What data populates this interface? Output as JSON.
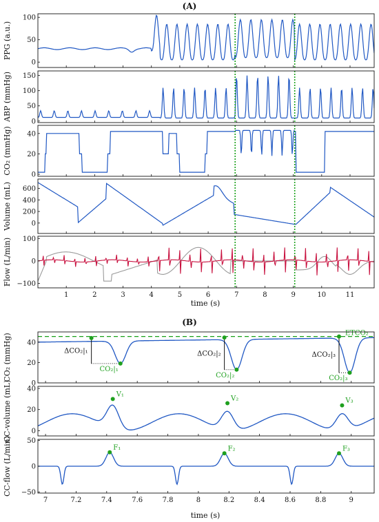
{
  "colors": {
    "signal": "#1f57c3",
    "flow_red": "#c8103e",
    "flow_gray": "#9a9a9a",
    "marker_green": "#1fa01f",
    "dashed_green": "#17a017",
    "axis": "#111111"
  },
  "chart_data": [
    {
      "type": "line",
      "panel": "A",
      "title": "(A)",
      "xlabel": "time (s)",
      "xlim": [
        0,
        11.85
      ],
      "xticks": [
        1,
        2,
        3,
        4,
        5,
        6,
        7,
        8,
        9,
        10,
        11
      ],
      "xtick_labels": [
        "1",
        "2",
        "3",
        "4",
        "5",
        "6",
        "7",
        "8",
        "9",
        "10",
        "11"
      ],
      "vlines": [
        6.95,
        9.05
      ],
      "subplots": [
        {
          "ylabel": "PPG (a.u.)",
          "ylim": [
            -12,
            108
          ],
          "yticks": [
            0,
            50,
            100
          ],
          "ytick_labels": [
            "0",
            "50",
            "100"
          ]
        },
        {
          "ylabel": "ABP (mmHg)",
          "ylim": [
            -5,
            165
          ],
          "yticks": [
            0,
            50,
            100,
            150
          ],
          "ytick_labels": [
            "0",
            "50",
            "100",
            "150"
          ]
        },
        {
          "ylabel": "CO₂ (mmHg)",
          "ylim": [
            -2,
            48
          ],
          "yticks": [
            0,
            20,
            40
          ],
          "ytick_labels": [
            "0",
            "20",
            "40"
          ]
        },
        {
          "ylabel": "Volume (mL)",
          "ylim": [
            -180,
            760
          ],
          "yticks": [
            0,
            200,
            400,
            600
          ],
          "ytick_labels": [
            "0",
            "200",
            "400",
            "600"
          ]
        },
        {
          "ylabel": "Flow (L/min)",
          "ylim": [
            -120,
            110
          ],
          "yticks": [
            -100,
            0,
            100
          ],
          "ytick_labels": [
            "−100",
            "0",
            "100"
          ]
        }
      ]
    },
    {
      "type": "line",
      "panel": "B",
      "title": "(B)",
      "xlabel": "time (s)",
      "xlim": [
        6.95,
        9.15
      ],
      "xticks": [
        7,
        7.2,
        7.4,
        7.6,
        7.8,
        8,
        8.2,
        8.4,
        8.6,
        8.8,
        9
      ],
      "xtick_labels": [
        "7",
        "7.2",
        "7.4",
        "7.6",
        "7.8",
        "8",
        "8.2",
        "8.4",
        "8.6",
        "8.8",
        "9"
      ],
      "subplots": [
        {
          "ylabel": "CO₂ (mmHg)",
          "ylim": [
            0,
            50
          ],
          "yticks": [
            0,
            20,
            40
          ],
          "ytick_labels": [
            "0",
            "20",
            "40"
          ],
          "etco2_level": 45.5,
          "etco2_label": "ETCO₂",
          "peaks": [
            {
              "x": 7.3,
              "y": 44
            },
            {
              "x": 8.17,
              "y": 44.5
            },
            {
              "x": 8.92,
              "y": 45.5
            }
          ],
          "troughs": [
            {
              "x": 7.49,
              "y": 19
            },
            {
              "x": 8.25,
              "y": 13
            },
            {
              "x": 8.99,
              "y": 10
            }
          ],
          "delta_labels": [
            "ΔCO₂|₁",
            "ΔCO₂|₂",
            "ΔCO₂|₃"
          ],
          "trough_labels": [
            "CO₂|₁",
            "CO₂|₂",
            "CO₂|₃"
          ]
        },
        {
          "ylabel": "CC-volume (mL)",
          "ylim": [
            -5,
            42
          ],
          "yticks": [
            0,
            20,
            40
          ],
          "ytick_labels": [
            "0",
            "20",
            "40"
          ],
          "markers": [
            {
              "x": 7.44,
              "y": 30,
              "label": "V₁"
            },
            {
              "x": 8.19,
              "y": 26,
              "label": "V₂"
            },
            {
              "x": 8.94,
              "y": 24,
              "label": "V₃"
            }
          ]
        },
        {
          "ylabel": "CC-flow (L/min)",
          "ylim": [
            -52,
            52
          ],
          "yticks": [
            -50,
            0,
            50
          ],
          "ytick_labels": [
            "−50",
            "0",
            "50"
          ],
          "markers": [
            {
              "x": 7.42,
              "y": 27,
              "label": "F₁"
            },
            {
              "x": 8.17,
              "y": 25,
              "label": "F₂"
            },
            {
              "x": 8.92,
              "y": 25,
              "label": "F₃"
            }
          ]
        }
      ]
    }
  ]
}
